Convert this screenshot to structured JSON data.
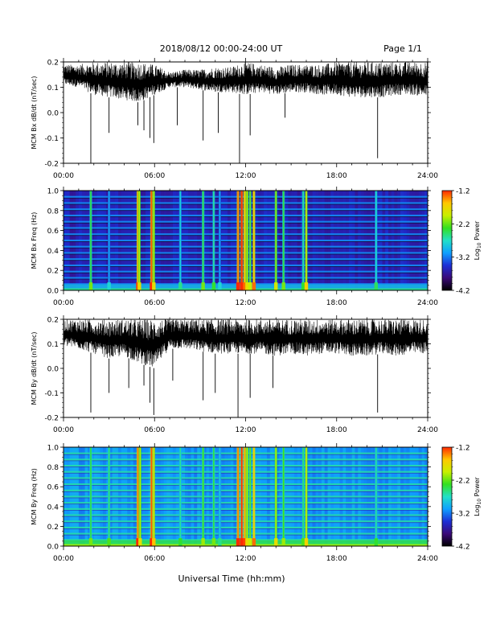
{
  "header": {
    "title": "2018/08/12  00:00-24:00 UT",
    "page": "Page 1/1"
  },
  "footer": {
    "xlabel": "Universal Time (hh:mm)"
  },
  "colors": {
    "trace": "#000000",
    "colormap": [
      "#000000",
      "#3b0a78",
      "#1d2fd6",
      "#0fa0ff",
      "#22e0c8",
      "#33e020",
      "#c8f000",
      "#ffc800",
      "#ff2a00"
    ]
  },
  "chart_data": [
    {
      "type": "line",
      "ylabel": "MCM Bx dB/dt (nT/sec)",
      "xlim": [
        "00:00",
        "24:00"
      ],
      "ylim": [
        -0.2,
        0.2
      ],
      "xticks": [
        "00:00",
        "06:00",
        "12:00",
        "18:00",
        "24:00"
      ],
      "yticks": [
        "-0.2",
        "-0.1",
        "0.0",
        "0.1",
        "0.2"
      ],
      "x_unit": "hours UT",
      "envelope_x": [
        0,
        1,
        2,
        3,
        4,
        5,
        6,
        7,
        8,
        9,
        10,
        11,
        12,
        13,
        14,
        15,
        16,
        17,
        18,
        19,
        20,
        21,
        22,
        23,
        24
      ],
      "envelope_upper": [
        0.19,
        0.19,
        0.2,
        0.2,
        0.2,
        0.2,
        0.19,
        0.16,
        0.17,
        0.17,
        0.18,
        0.18,
        0.2,
        0.19,
        0.18,
        0.19,
        0.19,
        0.19,
        0.2,
        0.2,
        0.2,
        0.2,
        0.2,
        0.2,
        0.2
      ],
      "envelope_lower": [
        0.11,
        0.1,
        0.07,
        0.06,
        0.05,
        0.04,
        0.07,
        0.1,
        0.1,
        0.09,
        0.08,
        0.08,
        0.07,
        0.08,
        0.07,
        0.08,
        0.08,
        0.07,
        0.07,
        0.06,
        0.06,
        0.06,
        0.07,
        0.07,
        0.06
      ],
      "spikes": [
        {
          "x": 1.8,
          "y": -0.2
        },
        {
          "x": 3.0,
          "y": -0.08
        },
        {
          "x": 4.9,
          "y": -0.05
        },
        {
          "x": 5.3,
          "y": -0.07
        },
        {
          "x": 5.7,
          "y": -0.1
        },
        {
          "x": 5.95,
          "y": -0.12
        },
        {
          "x": 7.5,
          "y": -0.05
        },
        {
          "x": 9.2,
          "y": -0.11
        },
        {
          "x": 10.2,
          "y": -0.08
        },
        {
          "x": 11.6,
          "y": -0.2
        },
        {
          "x": 12.3,
          "y": -0.09
        },
        {
          "x": 14.6,
          "y": -0.02
        },
        {
          "x": 20.7,
          "y": -0.18
        }
      ]
    },
    {
      "type": "heatmap",
      "ylabel": "MCM Bx Freq (Hz)",
      "xlim": [
        "00:00",
        "24:00"
      ],
      "ylim": [
        0.0,
        1.0
      ],
      "xticks": [
        "00:00",
        "06:00",
        "12:00",
        "18:00",
        "24:00"
      ],
      "yticks": [
        "0.0",
        "0.2",
        "0.4",
        "0.6",
        "0.8",
        "1.0"
      ],
      "colorbar_label": "Log10 Power",
      "colorbar_ticks": [
        "-1.2",
        "-2.2",
        "-3.2",
        "-4.2"
      ],
      "colorbar_range": [
        -4.2,
        -1.2
      ],
      "background_level": -3.6,
      "harmonic_spacing_hz": 0.0625,
      "bursts": [
        {
          "x": 1.8,
          "level": -2.4
        },
        {
          "x": 3.0,
          "level": -3.0
        },
        {
          "x": 4.9,
          "level": -1.5
        },
        {
          "x": 5.0,
          "level": -2.0
        },
        {
          "x": 5.8,
          "level": -1.3
        },
        {
          "x": 5.95,
          "level": -2.0
        },
        {
          "x": 7.7,
          "level": -2.8
        },
        {
          "x": 9.2,
          "level": -2.4
        },
        {
          "x": 9.9,
          "level": -2.6
        },
        {
          "x": 10.3,
          "level": -3.0
        },
        {
          "x": 11.5,
          "level": -1.4
        },
        {
          "x": 11.75,
          "level": -1.2
        },
        {
          "x": 11.95,
          "level": -1.6
        },
        {
          "x": 12.1,
          "level": -2.0
        },
        {
          "x": 12.3,
          "level": -2.2
        },
        {
          "x": 12.55,
          "level": -1.6
        },
        {
          "x": 14.0,
          "level": -2.1
        },
        {
          "x": 14.5,
          "level": -2.4
        },
        {
          "x": 15.8,
          "level": -2.6
        },
        {
          "x": 16.0,
          "level": -1.9
        },
        {
          "x": 20.6,
          "level": -2.7
        }
      ]
    },
    {
      "type": "line",
      "ylabel": "MCM By dB/dt (nT/sec)",
      "xlim": [
        "00:00",
        "24:00"
      ],
      "ylim": [
        -0.2,
        0.2
      ],
      "xticks": [
        "00:00",
        "06:00",
        "12:00",
        "18:00",
        "24:00"
      ],
      "yticks": [
        "-0.2",
        "-0.1",
        "0.0",
        "0.1",
        "0.2"
      ],
      "x_unit": "hours UT",
      "envelope_x": [
        0,
        1,
        2,
        3,
        4,
        5,
        6,
        7,
        8,
        9,
        10,
        11,
        12,
        13,
        14,
        15,
        16,
        17,
        18,
        19,
        20,
        21,
        22,
        23,
        24
      ],
      "envelope_upper": [
        0.2,
        0.2,
        0.2,
        0.2,
        0.2,
        0.2,
        0.2,
        0.2,
        0.2,
        0.2,
        0.2,
        0.2,
        0.2,
        0.2,
        0.2,
        0.2,
        0.2,
        0.2,
        0.2,
        0.2,
        0.2,
        0.2,
        0.2,
        0.2,
        0.2
      ],
      "envelope_lower": [
        0.09,
        0.08,
        0.06,
        0.04,
        0.05,
        0.02,
        0.0,
        0.08,
        0.08,
        0.07,
        0.06,
        0.06,
        0.06,
        0.06,
        0.05,
        0.06,
        0.05,
        0.06,
        0.06,
        0.05,
        0.05,
        0.06,
        0.05,
        0.06,
        0.06
      ],
      "spikes": [
        {
          "x": 1.8,
          "y": -0.18
        },
        {
          "x": 3.0,
          "y": -0.1
        },
        {
          "x": 4.3,
          "y": -0.08
        },
        {
          "x": 5.3,
          "y": -0.07
        },
        {
          "x": 5.7,
          "y": -0.14
        },
        {
          "x": 5.95,
          "y": -0.19
        },
        {
          "x": 7.2,
          "y": -0.05
        },
        {
          "x": 9.2,
          "y": -0.13
        },
        {
          "x": 10.0,
          "y": -0.1
        },
        {
          "x": 11.5,
          "y": -0.2
        },
        {
          "x": 12.3,
          "y": -0.12
        },
        {
          "x": 13.8,
          "y": -0.08
        },
        {
          "x": 20.7,
          "y": -0.18
        }
      ]
    },
    {
      "type": "heatmap",
      "ylabel": "MCM By Freq (Hz)",
      "xlim": [
        "00:00",
        "24:00"
      ],
      "ylim": [
        0.0,
        1.0
      ],
      "xticks": [
        "00:00",
        "06:00",
        "12:00",
        "18:00",
        "24:00"
      ],
      "yticks": [
        "0.0",
        "0.2",
        "0.4",
        "0.6",
        "0.8",
        "1.0"
      ],
      "colorbar_label": "Log10 Power",
      "colorbar_ticks": [
        "-1.2",
        "-2.2",
        "-3.2",
        "-4.2"
      ],
      "colorbar_range": [
        -4.2,
        -1.2
      ],
      "background_level": -3.1,
      "harmonic_spacing_hz": 0.0625,
      "bursts": [
        {
          "x": 1.8,
          "level": -2.4
        },
        {
          "x": 3.0,
          "level": -2.5
        },
        {
          "x": 4.9,
          "level": -1.4
        },
        {
          "x": 5.05,
          "level": -2.0
        },
        {
          "x": 5.8,
          "level": -1.3
        },
        {
          "x": 5.95,
          "level": -1.8
        },
        {
          "x": 7.7,
          "level": -2.6
        },
        {
          "x": 9.2,
          "level": -2.3
        },
        {
          "x": 9.9,
          "level": -2.4
        },
        {
          "x": 10.3,
          "level": -2.8
        },
        {
          "x": 11.5,
          "level": -1.4
        },
        {
          "x": 11.75,
          "level": -1.2
        },
        {
          "x": 11.95,
          "level": -1.5
        },
        {
          "x": 12.1,
          "level": -2.0
        },
        {
          "x": 12.3,
          "level": -2.2
        },
        {
          "x": 12.55,
          "level": -1.6
        },
        {
          "x": 14.0,
          "level": -2.0
        },
        {
          "x": 14.5,
          "level": -2.3
        },
        {
          "x": 15.8,
          "level": -2.5
        },
        {
          "x": 16.0,
          "level": -1.9
        },
        {
          "x": 20.6,
          "level": -2.6
        }
      ]
    }
  ]
}
